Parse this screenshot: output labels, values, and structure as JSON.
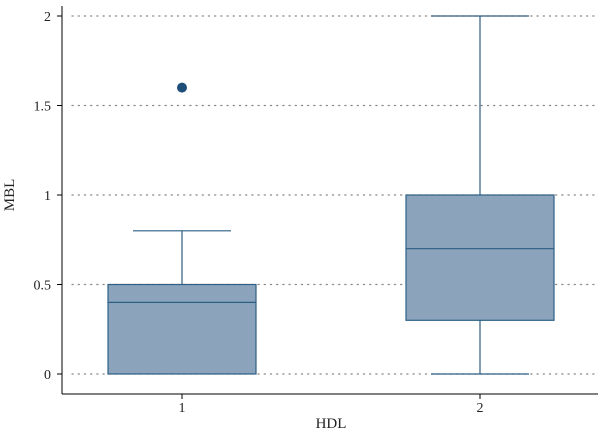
{
  "chart_data": {
    "type": "box",
    "xlabel": "HDL",
    "ylabel": "MBL",
    "categories": [
      "1",
      "2"
    ],
    "ylim": [
      0,
      2
    ],
    "yticks": [
      "0",
      "0.5",
      "1",
      "1.5",
      "2"
    ],
    "grid": "horizontal dotted",
    "boxes": [
      {
        "category": "1",
        "whisker_low": 0,
        "q1": 0,
        "median": 0.4,
        "q3": 0.5,
        "whisker_high": 0.8,
        "outliers": [
          1.6
        ]
      },
      {
        "category": "2",
        "whisker_low": 0,
        "q1": 0.3,
        "median": 0.7,
        "q3": 1.0,
        "whisker_high": 2.0,
        "outliers": []
      }
    ],
    "colors": {
      "box_fill": "#8ba4bb",
      "box_stroke": "#2d5e84",
      "outlier": "#1f4e79",
      "axis": "#000000",
      "grid": "#888888"
    }
  }
}
